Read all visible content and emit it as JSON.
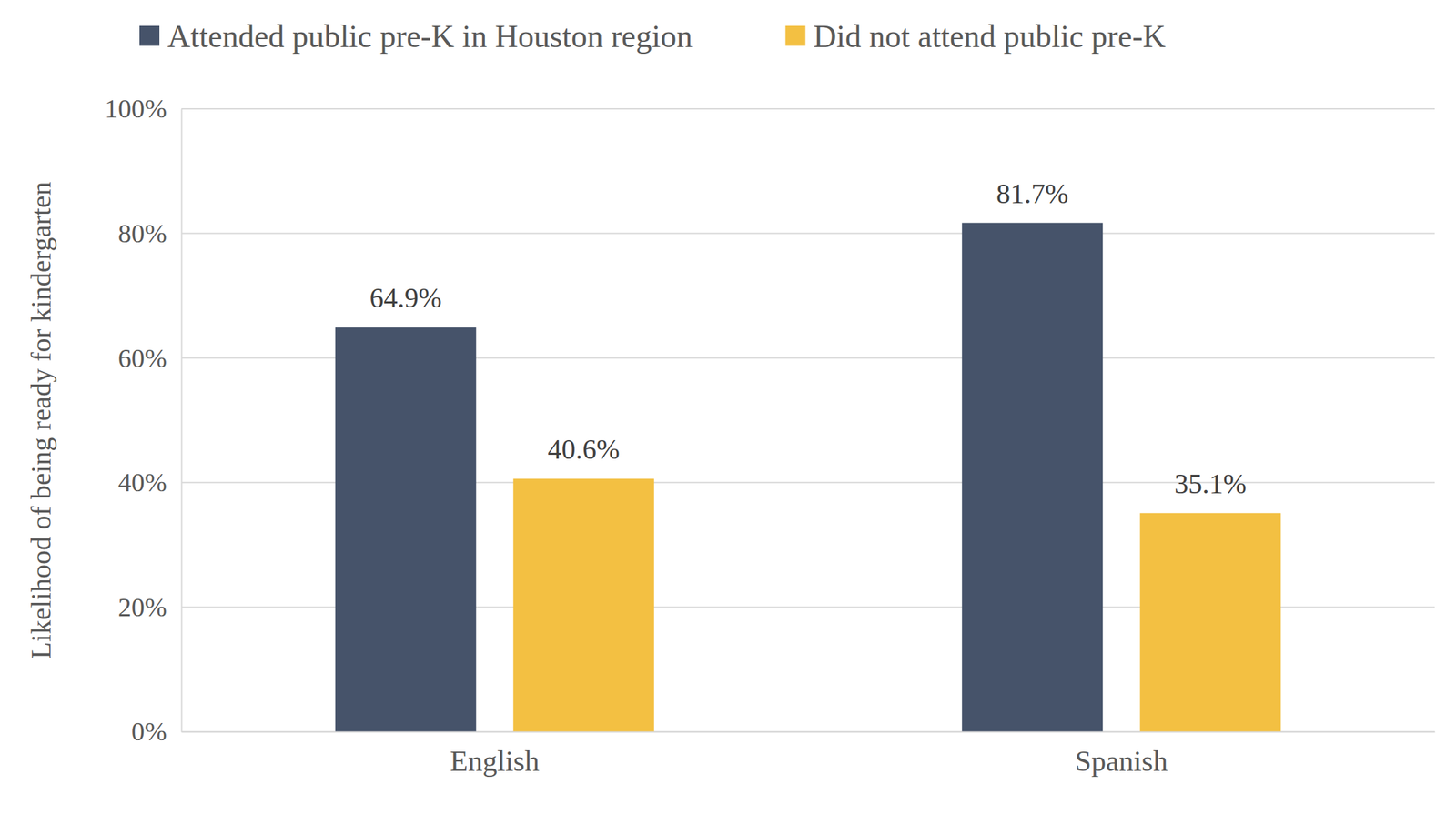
{
  "chart_data": {
    "type": "bar",
    "y_label": "Likelihood of being ready for kindergarten",
    "categories": [
      "English",
      "Spanish"
    ],
    "series": [
      {
        "name": "Attended public pre-K in Houston region",
        "color": "#46536a",
        "values": [
          64.9,
          81.7
        ],
        "value_labels": [
          "64.9%",
          "81.7%"
        ]
      },
      {
        "name": "Did not attend public pre-K",
        "color": "#f3c042",
        "values": [
          40.6,
          35.1
        ],
        "value_labels": [
          "40.6%",
          "35.1%"
        ]
      }
    ],
    "ylim": [
      0,
      100
    ],
    "yticks": [
      {
        "value": 0,
        "label": "0%"
      },
      {
        "value": 20,
        "label": "20%"
      },
      {
        "value": 40,
        "label": "40%"
      },
      {
        "value": 60,
        "label": "60%"
      },
      {
        "value": 80,
        "label": "80%"
      },
      {
        "value": 100,
        "label": "100%"
      }
    ],
    "grid": true,
    "legend": "top",
    "data_labels": true
  }
}
